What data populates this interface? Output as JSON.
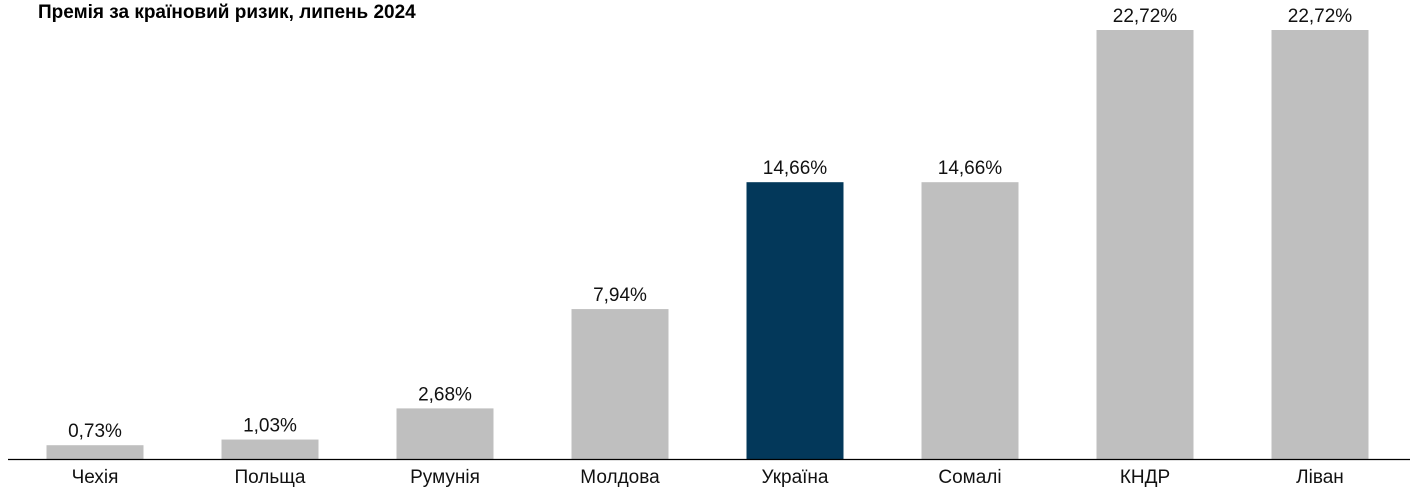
{
  "chart_data": {
    "type": "bar",
    "title": "Премія за країновий ризик, липень 2024",
    "xlabel": "",
    "ylabel": "",
    "ylim": [
      0,
      22.72
    ],
    "grid": false,
    "categories": [
      "Чехія",
      "Польща",
      "Румунія",
      "Молдова",
      "Україна",
      "Сомалі",
      "КНДР",
      "Ліван"
    ],
    "values": [
      0.73,
      1.03,
      2.68,
      7.94,
      14.66,
      14.66,
      22.72,
      22.72
    ],
    "value_labels": [
      "0,73%",
      "1,03%",
      "2,68%",
      "7,94%",
      "14,66%",
      "14,66%",
      "22,72%",
      "22,72%"
    ],
    "highlight_index": 4,
    "colors": {
      "default": "#bfbfbf",
      "highlight": "#03385a",
      "axis": "#000000"
    }
  }
}
